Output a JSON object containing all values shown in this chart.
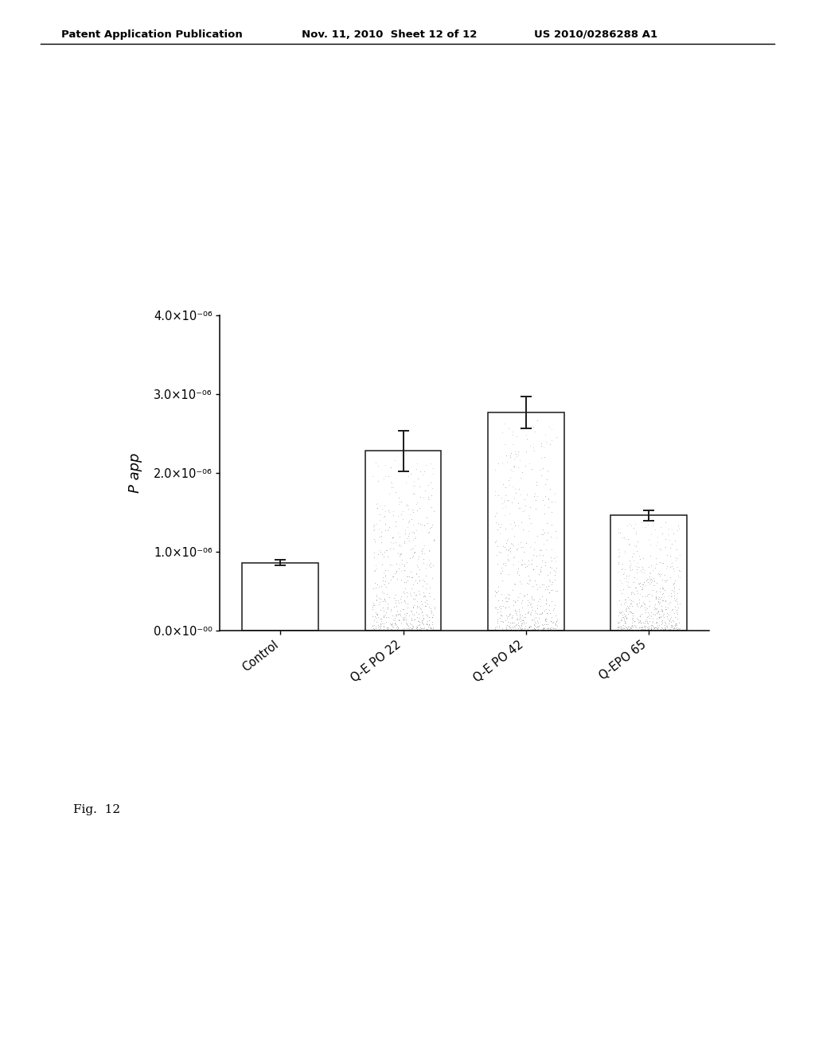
{
  "categories": [
    "Control",
    "Q-E PO 22",
    "Q-E PO 42",
    "Q-EPO 65"
  ],
  "values": [
    8.6e-07,
    2.28e-06,
    2.77e-06,
    1.46e-06
  ],
  "errors": [
    3.5e-08,
    2.6e-07,
    2e-07,
    6.5e-08
  ],
  "ylabel": "P app",
  "ylim": [
    0,
    4e-06
  ],
  "yticks": [
    0.0,
    1e-06,
    2e-06,
    3e-06,
    4e-06
  ],
  "bar_color": "#ffffff",
  "bar_edgecolor": "#1a1a1a",
  "error_color": "#1a1a1a",
  "bar_width": 0.62,
  "fig_caption": "Fig.  12",
  "header_left": "Patent Application Publication",
  "header_mid": "Nov. 11, 2010  Sheet 12 of 12",
  "header_right": "US 2010/0286288 A1",
  "background_color": "#ffffff",
  "ylabel_fontsize": 13,
  "tick_fontsize": 10.5,
  "header_fontsize": 9.5
}
